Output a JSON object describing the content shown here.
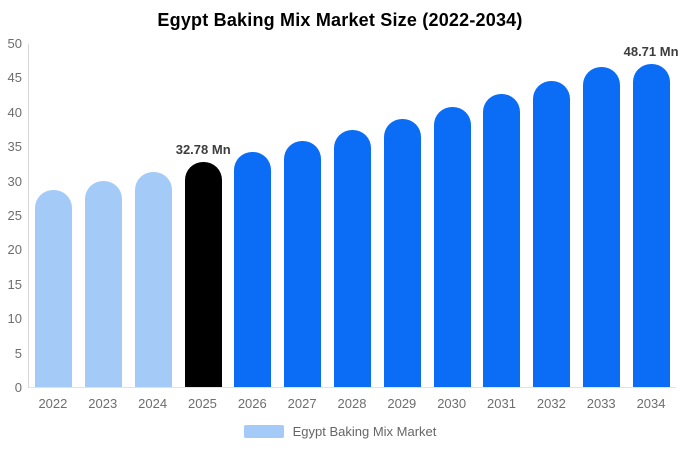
{
  "chart_data": {
    "type": "bar",
    "title": "Egypt Baking Mix Market Size (2022-2034)",
    "xlabel": "",
    "ylabel": "",
    "unit": "Mn",
    "categories": [
      "2022",
      "2023",
      "2024",
      "2025",
      "2026",
      "2027",
      "2028",
      "2029",
      "2030",
      "2031",
      "2032",
      "2033",
      "2034"
    ],
    "values": [
      28.73,
      30.02,
      31.37,
      32.78,
      34.25,
      35.8,
      37.41,
      39.09,
      40.85,
      42.69,
      44.61,
      46.62,
      48.71
    ],
    "point_labels": [
      "",
      "",
      "",
      "32.78 Mn",
      "",
      "",
      "",
      "",
      "",
      "",
      "",
      "",
      "48.71 Mn"
    ],
    "bar_colors": [
      "#A4CBF8",
      "#A4CBF8",
      "#A4CBF8",
      "#000000",
      "#0B6DF5",
      "#0B6DF5",
      "#0B6DF5",
      "#0B6DF5",
      "#0B6DF5",
      "#0B6DF5",
      "#0B6DF5",
      "#0B6DF5",
      "#0B6DF5"
    ],
    "ylim": [
      0,
      50
    ],
    "yticks": [
      "0",
      "5",
      "10",
      "15",
      "20",
      "25",
      "30",
      "35",
      "40",
      "45",
      "50"
    ],
    "grid": false,
    "legend": {
      "position": "bottom",
      "label": "Egypt Baking Mix Market",
      "swatch_color": "#A4CBF8"
    },
    "colors": {
      "historical_bar": "#A4CBF8",
      "highlight_bar": "#000000",
      "forecast_bar": "#0B6DF5",
      "axis_text": "#6E6E6E",
      "value_label_text": "#3D3D3D",
      "title_text": "#000000",
      "axis_line": "#D6D6D6"
    }
  }
}
